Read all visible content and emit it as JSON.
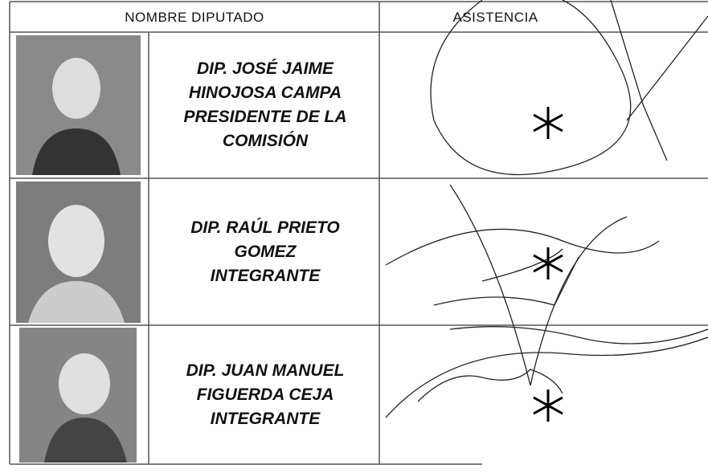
{
  "table": {
    "headers": [
      "NOMBRE DIPUTADO",
      "ASISTENCIA"
    ],
    "rows": [
      {
        "lines": [
          "DIP. JOSÉ JAIME",
          "HINOJOSA CAMPA",
          "PRESIDENTE DE LA",
          "COMISIÓN"
        ]
      },
      {
        "lines": [
          "DIP. RAÚL PRIETO",
          "GOMEZ",
          "INTEGRANTE"
        ]
      },
      {
        "lines": [
          "DIP. JUAN MANUEL",
          "FIGUERDA CEJA",
          "INTEGRANTE"
        ]
      }
    ]
  }
}
